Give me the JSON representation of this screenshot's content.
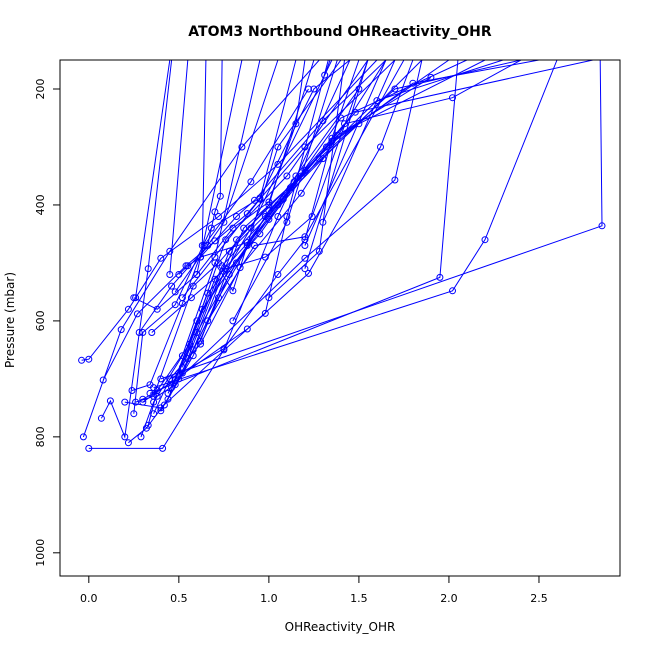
{
  "chart_data": {
    "type": "line",
    "title": "ATOM3 Northbound OHReactivity_OHR",
    "xlabel": "OHReactivity_OHR",
    "ylabel": "Pressure (mbar)",
    "xlim": [
      -0.16,
      2.95
    ],
    "ylim": [
      1040,
      150
    ],
    "y_reversed": true,
    "x_ticks": [
      0.0,
      0.5,
      1.0,
      1.5,
      2.0,
      2.5
    ],
    "x_tick_labels": [
      "0.0",
      "0.5",
      "1.0",
      "1.5",
      "2.0",
      "2.5"
    ],
    "y_ticks": [
      200,
      400,
      600,
      800,
      1000
    ],
    "y_tick_labels": [
      "200",
      "400",
      "600",
      "800",
      "1000"
    ],
    "line_color": "#0000ff",
    "marker": "open-circle",
    "grid": false,
    "series": [
      {
        "values": [
          [
            -0.03,
            800
          ],
          [
            0.18,
            615
          ],
          [
            0.45,
            480
          ],
          [
            0.85,
            300
          ],
          [
            1.28,
            150
          ]
        ]
      },
      {
        "values": [
          [
            0.0,
            820
          ],
          [
            0.41,
            820
          ],
          [
            0.75,
            650
          ],
          [
            1.05,
            420
          ],
          [
            1.45,
            150
          ]
        ]
      },
      {
        "values": [
          [
            -0.04,
            668
          ],
          [
            0.0,
            666
          ],
          [
            0.22,
            580
          ],
          [
            0.4,
            492
          ],
          [
            0.72,
            420
          ],
          [
            1.05,
            330
          ],
          [
            1.6,
            150
          ]
        ]
      },
      {
        "values": [
          [
            0.07,
            768
          ],
          [
            0.12,
            738
          ],
          [
            0.2,
            800
          ],
          [
            0.33,
            510
          ],
          [
            0.46,
            150
          ]
        ]
      },
      {
        "values": [
          [
            0.08,
            702
          ],
          [
            0.27,
            588
          ],
          [
            0.54,
            505
          ],
          [
            0.88,
            415
          ],
          [
            1.2,
            300
          ],
          [
            1.7,
            150
          ]
        ]
      },
      {
        "values": [
          [
            0.22,
            810
          ],
          [
            0.32,
            785
          ],
          [
            0.44,
            735
          ],
          [
            0.6,
            600
          ],
          [
            0.9,
            440
          ],
          [
            1.35,
            150
          ]
        ]
      },
      {
        "values": [
          [
            0.25,
            760
          ],
          [
            0.3,
            620
          ],
          [
            0.48,
            572
          ],
          [
            0.68,
            440
          ],
          [
            0.95,
            388
          ],
          [
            1.25,
            200
          ],
          [
            1.45,
            150
          ]
        ]
      },
      {
        "values": [
          [
            0.29,
            800
          ],
          [
            0.36,
            740
          ],
          [
            0.52,
            660
          ],
          [
            0.7,
            500
          ],
          [
            0.8,
            548
          ],
          [
            1.05,
            300
          ],
          [
            1.4,
            150
          ]
        ]
      },
      {
        "values": [
          [
            0.33,
            780
          ],
          [
            0.38,
            720
          ],
          [
            0.56,
            640
          ],
          [
            0.76,
            460
          ],
          [
            1.1,
            350
          ],
          [
            1.55,
            150
          ]
        ]
      },
      {
        "values": [
          [
            0.36,
            760
          ],
          [
            0.45,
            700
          ],
          [
            0.62,
            640
          ],
          [
            0.84,
            508
          ],
          [
            1.18,
            380
          ],
          [
            1.65,
            150
          ]
        ]
      },
      {
        "values": [
          [
            0.38,
            730
          ],
          [
            0.48,
            710
          ],
          [
            0.66,
            600
          ],
          [
            0.92,
            470
          ],
          [
            1.2,
            455
          ],
          [
            1.75,
            150
          ]
        ]
      },
      {
        "values": [
          [
            0.4,
            755
          ],
          [
            0.52,
            690
          ],
          [
            0.72,
            560
          ],
          [
            0.98,
            420
          ],
          [
            1.3,
            320
          ],
          [
            1.85,
            150
          ]
        ]
      },
      {
        "values": [
          [
            0.42,
            745
          ],
          [
            0.58,
            660
          ],
          [
            0.78,
            520
          ],
          [
            1.0,
            410
          ],
          [
            1.35,
            290
          ],
          [
            2.0,
            150
          ]
        ]
      },
      {
        "values": [
          [
            0.44,
            725
          ],
          [
            0.6,
            620
          ],
          [
            0.82,
            500
          ],
          [
            1.08,
            390
          ],
          [
            1.4,
            250
          ],
          [
            2.1,
            150
          ]
        ]
      },
      {
        "values": [
          [
            0.46,
            715
          ],
          [
            0.63,
            580
          ],
          [
            0.88,
            470
          ],
          [
            1.12,
            370
          ],
          [
            1.5,
            260
          ],
          [
            2.2,
            150
          ]
        ]
      },
      {
        "values": [
          [
            0.48,
            702
          ],
          [
            0.66,
            552
          ],
          [
            0.95,
            450
          ],
          [
            1.2,
            340
          ],
          [
            1.6,
            220
          ],
          [
            2.3,
            150
          ]
        ]
      },
      {
        "values": [
          [
            0.5,
            690
          ],
          [
            0.7,
            528
          ],
          [
            1.0,
            425
          ],
          [
            1.28,
            320
          ],
          [
            1.7,
            200
          ],
          [
            2.4,
            150
          ]
        ]
      },
      {
        "values": [
          [
            0.52,
            680
          ],
          [
            0.74,
            505
          ],
          [
            1.05,
            400
          ],
          [
            1.32,
            300
          ],
          [
            1.8,
            190
          ],
          [
            2.5,
            150
          ]
        ]
      },
      {
        "values": [
          [
            0.55,
            665
          ],
          [
            0.78,
            480
          ],
          [
            1.1,
            380
          ],
          [
            1.38,
            280
          ],
          [
            1.9,
            180
          ]
        ]
      },
      {
        "values": [
          [
            0.58,
            650
          ],
          [
            0.82,
            460
          ],
          [
            1.14,
            360
          ],
          [
            1.42,
            260
          ],
          [
            2.02,
            215
          ],
          [
            2.4,
            150
          ]
        ]
      },
      {
        "values": [
          [
            0.62,
            635
          ],
          [
            0.86,
            440
          ],
          [
            1.18,
            350
          ],
          [
            1.48,
            240
          ],
          [
            2.8,
            150
          ]
        ]
      },
      {
        "values": [
          [
            0.24,
            720
          ],
          [
            0.34,
            710
          ],
          [
            0.52,
            570
          ],
          [
            0.64,
            470
          ],
          [
            0.9,
            360
          ],
          [
            1.22,
            200
          ]
        ]
      },
      {
        "values": [
          [
            0.26,
            740
          ],
          [
            0.36,
            730
          ],
          [
            0.58,
            540
          ],
          [
            0.72,
            500
          ],
          [
            1.0,
            400
          ],
          [
            1.25,
            150
          ]
        ]
      },
      {
        "values": [
          [
            0.2,
            740
          ],
          [
            0.4,
            750
          ],
          [
            1.22,
            518
          ],
          [
            1.62,
            300
          ],
          [
            1.8,
            150
          ]
        ]
      },
      {
        "values": [
          [
            0.3,
            735
          ],
          [
            0.5,
            700
          ],
          [
            1.2,
            492
          ],
          [
            1.7,
            357
          ],
          [
            1.85,
            150
          ]
        ]
      },
      {
        "values": [
          [
            0.34,
            725
          ],
          [
            1.95,
            525
          ],
          [
            2.05,
            150
          ]
        ]
      },
      {
        "values": [
          [
            0.36,
            715
          ],
          [
            2.02,
            548
          ],
          [
            2.2,
            460
          ],
          [
            2.6,
            150
          ]
        ]
      },
      {
        "values": [
          [
            0.4,
            700
          ],
          [
            2.85,
            436
          ],
          [
            2.84,
            150
          ]
        ]
      },
      {
        "values": [
          [
            0.3,
            740
          ],
          [
            0.88,
            614
          ],
          [
            0.98,
            587
          ],
          [
            1.1,
            420
          ],
          [
            1.33,
            150
          ]
        ]
      },
      {
        "values": [
          [
            0.45,
            700
          ],
          [
            0.75,
            648
          ],
          [
            1.05,
            520
          ],
          [
            1.2,
            460
          ],
          [
            1.35,
            285
          ],
          [
            1.5,
            150
          ]
        ]
      },
      {
        "values": [
          [
            0.5,
            520
          ],
          [
            0.55,
            505
          ],
          [
            0.62,
            490
          ],
          [
            0.88,
            465
          ],
          [
            1.15,
            350
          ],
          [
            1.5,
            200
          ]
        ]
      },
      {
        "values": [
          [
            0.35,
            620
          ],
          [
            0.57,
            560
          ],
          [
            0.76,
            510
          ],
          [
            0.98,
            490
          ],
          [
            1.24,
            420
          ],
          [
            1.55,
            150
          ]
        ]
      },
      {
        "values": [
          [
            0.62,
            490
          ],
          [
            0.7,
            462
          ],
          [
            0.82,
            420
          ],
          [
            0.92,
            392
          ],
          [
            1.3,
            255
          ],
          [
            1.65,
            150
          ]
        ]
      },
      {
        "values": [
          [
            0.28,
            620
          ],
          [
            0.46,
            540
          ],
          [
            0.66,
            470
          ],
          [
            0.7,
            412
          ],
          [
            0.73,
            385
          ],
          [
            0.74,
            150
          ]
        ]
      },
      {
        "values": [
          [
            0.25,
            560
          ],
          [
            0.38,
            580
          ],
          [
            0.6,
            520
          ],
          [
            0.8,
            440
          ],
          [
            1.0,
            395
          ],
          [
            1.15,
            260
          ],
          [
            1.2,
            150
          ]
        ]
      },
      {
        "values": [
          [
            0.45,
            520
          ],
          [
            0.55,
            150
          ]
        ]
      },
      {
        "values": [
          [
            0.26,
            560
          ],
          [
            0.45,
            150
          ]
        ]
      },
      {
        "values": [
          [
            0.63,
            470
          ],
          [
            0.65,
            150
          ]
        ]
      },
      {
        "values": [
          [
            0.6,
            520
          ],
          [
            0.85,
            150
          ]
        ]
      },
      {
        "values": [
          [
            0.7,
            490
          ],
          [
            0.95,
            150
          ]
        ]
      },
      {
        "values": [
          [
            1.2,
            470
          ],
          [
            1.65,
            150
          ]
        ]
      },
      {
        "values": [
          [
            1.3,
            430
          ],
          [
            1.7,
            150
          ]
        ]
      },
      {
        "values": [
          [
            1.31,
            176
          ],
          [
            1.34,
            150
          ]
        ]
      },
      {
        "values": [
          [
            1.2,
            510
          ],
          [
            1.55,
            150
          ]
        ]
      },
      {
        "values": [
          [
            1.0,
            560
          ],
          [
            1.28,
            480
          ],
          [
            1.42,
            150
          ]
        ]
      },
      {
        "values": [
          [
            0.8,
            600
          ],
          [
            1.1,
            430
          ],
          [
            1.38,
            150
          ]
        ]
      },
      {
        "values": [
          [
            0.52,
            560
          ],
          [
            0.95,
            390
          ],
          [
            1.15,
            150
          ]
        ]
      },
      {
        "values": [
          [
            0.48,
            550
          ],
          [
            0.75,
            430
          ],
          [
            1.05,
            150
          ]
        ]
      }
    ]
  }
}
